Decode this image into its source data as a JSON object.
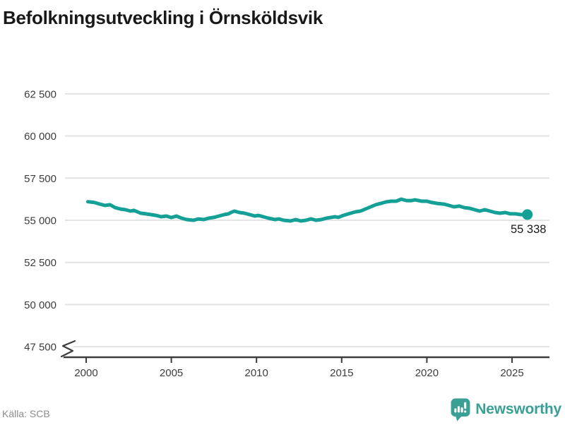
{
  "header": {
    "title": "Befolkningsutveckling i Örnsköldsvik"
  },
  "chart_data": {
    "type": "line",
    "title": "Befolkningsutveckling i Örnsköldsvik",
    "legend_position": "none",
    "grid": "horizontal",
    "line_color": "#14a096",
    "gridline_color": "#e3e3e3",
    "axis_color": "#3d3d3d",
    "y_axis_break": true,
    "xlim": [
      1998.7,
      2027.2
    ],
    "ylim": [
      47500,
      62500
    ],
    "x_ticks": [
      {
        "value": 2000,
        "label": "2000"
      },
      {
        "value": 2005,
        "label": "2005"
      },
      {
        "value": 2010,
        "label": "2010"
      },
      {
        "value": 2015,
        "label": "2015"
      },
      {
        "value": 2020,
        "label": "2020"
      },
      {
        "value": 2025,
        "label": "2025"
      }
    ],
    "y_ticks": [
      {
        "value": 47500,
        "label": "47 500"
      },
      {
        "value": 50000,
        "label": "50 000"
      },
      {
        "value": 52500,
        "label": "52 500"
      },
      {
        "value": 55000,
        "label": "55 000"
      },
      {
        "value": 57500,
        "label": "57 500"
      },
      {
        "value": 60000,
        "label": "60 000"
      },
      {
        "value": 62500,
        "label": "62 500"
      }
    ],
    "end_point": {
      "year": 2025.9,
      "value": 55338,
      "label": "55 338"
    },
    "series": [
      {
        "name": "Örnsköldsvik",
        "points": [
          [
            2000.1,
            56100
          ],
          [
            2000.5,
            56050
          ],
          [
            2000.8,
            55960
          ],
          [
            2001.1,
            55880
          ],
          [
            2001.4,
            55920
          ],
          [
            2001.7,
            55750
          ],
          [
            2002.0,
            55670
          ],
          [
            2002.3,
            55630
          ],
          [
            2002.6,
            55545
          ],
          [
            2002.8,
            55590
          ],
          [
            2003.2,
            55420
          ],
          [
            2003.5,
            55380
          ],
          [
            2003.8,
            55335
          ],
          [
            2004.1,
            55290
          ],
          [
            2004.4,
            55210
          ],
          [
            2004.7,
            55250
          ],
          [
            2005.0,
            55165
          ],
          [
            2005.3,
            55250
          ],
          [
            2005.6,
            55125
          ],
          [
            2005.9,
            55040
          ],
          [
            2006.3,
            55000
          ],
          [
            2006.6,
            55080
          ],
          [
            2006.9,
            55040
          ],
          [
            2007.2,
            55125
          ],
          [
            2007.5,
            55170
          ],
          [
            2007.8,
            55250
          ],
          [
            2008.1,
            55335
          ],
          [
            2008.35,
            55380
          ],
          [
            2008.5,
            55460
          ],
          [
            2008.7,
            55545
          ],
          [
            2009.0,
            55460
          ],
          [
            2009.3,
            55420
          ],
          [
            2009.6,
            55335
          ],
          [
            2009.9,
            55250
          ],
          [
            2010.1,
            55290
          ],
          [
            2010.4,
            55210
          ],
          [
            2010.7,
            55125
          ],
          [
            2011.1,
            55040
          ],
          [
            2011.3,
            55080
          ],
          [
            2011.6,
            55000
          ],
          [
            2012.0,
            54960
          ],
          [
            2012.3,
            55040
          ],
          [
            2012.6,
            54960
          ],
          [
            2012.9,
            55000
          ],
          [
            2013.2,
            55080
          ],
          [
            2013.5,
            55000
          ],
          [
            2013.8,
            55040
          ],
          [
            2014.1,
            55125
          ],
          [
            2014.4,
            55170
          ],
          [
            2014.6,
            55210
          ],
          [
            2014.8,
            55170
          ],
          [
            2015.1,
            55290
          ],
          [
            2015.4,
            55380
          ],
          [
            2015.8,
            55500
          ],
          [
            2016.1,
            55545
          ],
          [
            2016.4,
            55670
          ],
          [
            2016.7,
            55795
          ],
          [
            2017.0,
            55920
          ],
          [
            2017.3,
            56000
          ],
          [
            2017.6,
            56090
          ],
          [
            2017.9,
            56130
          ],
          [
            2018.2,
            56130
          ],
          [
            2018.5,
            56250
          ],
          [
            2018.8,
            56170
          ],
          [
            2019.1,
            56170
          ],
          [
            2019.3,
            56210
          ],
          [
            2019.7,
            56130
          ],
          [
            2020.0,
            56130
          ],
          [
            2020.3,
            56050
          ],
          [
            2020.6,
            56000
          ],
          [
            2021.0,
            55960
          ],
          [
            2021.3,
            55880
          ],
          [
            2021.6,
            55795
          ],
          [
            2021.9,
            55840
          ],
          [
            2022.2,
            55750
          ],
          [
            2022.5,
            55710
          ],
          [
            2022.8,
            55630
          ],
          [
            2023.1,
            55545
          ],
          [
            2023.4,
            55630
          ],
          [
            2023.7,
            55545
          ],
          [
            2024.0,
            55460
          ],
          [
            2024.3,
            55420
          ],
          [
            2024.6,
            55460
          ],
          [
            2024.9,
            55380
          ],
          [
            2025.2,
            55380
          ],
          [
            2025.5,
            55335
          ],
          [
            2025.9,
            55338
          ]
        ]
      }
    ]
  },
  "footer": {
    "source": "Källa: SCB",
    "brand": "Newsworthy"
  }
}
